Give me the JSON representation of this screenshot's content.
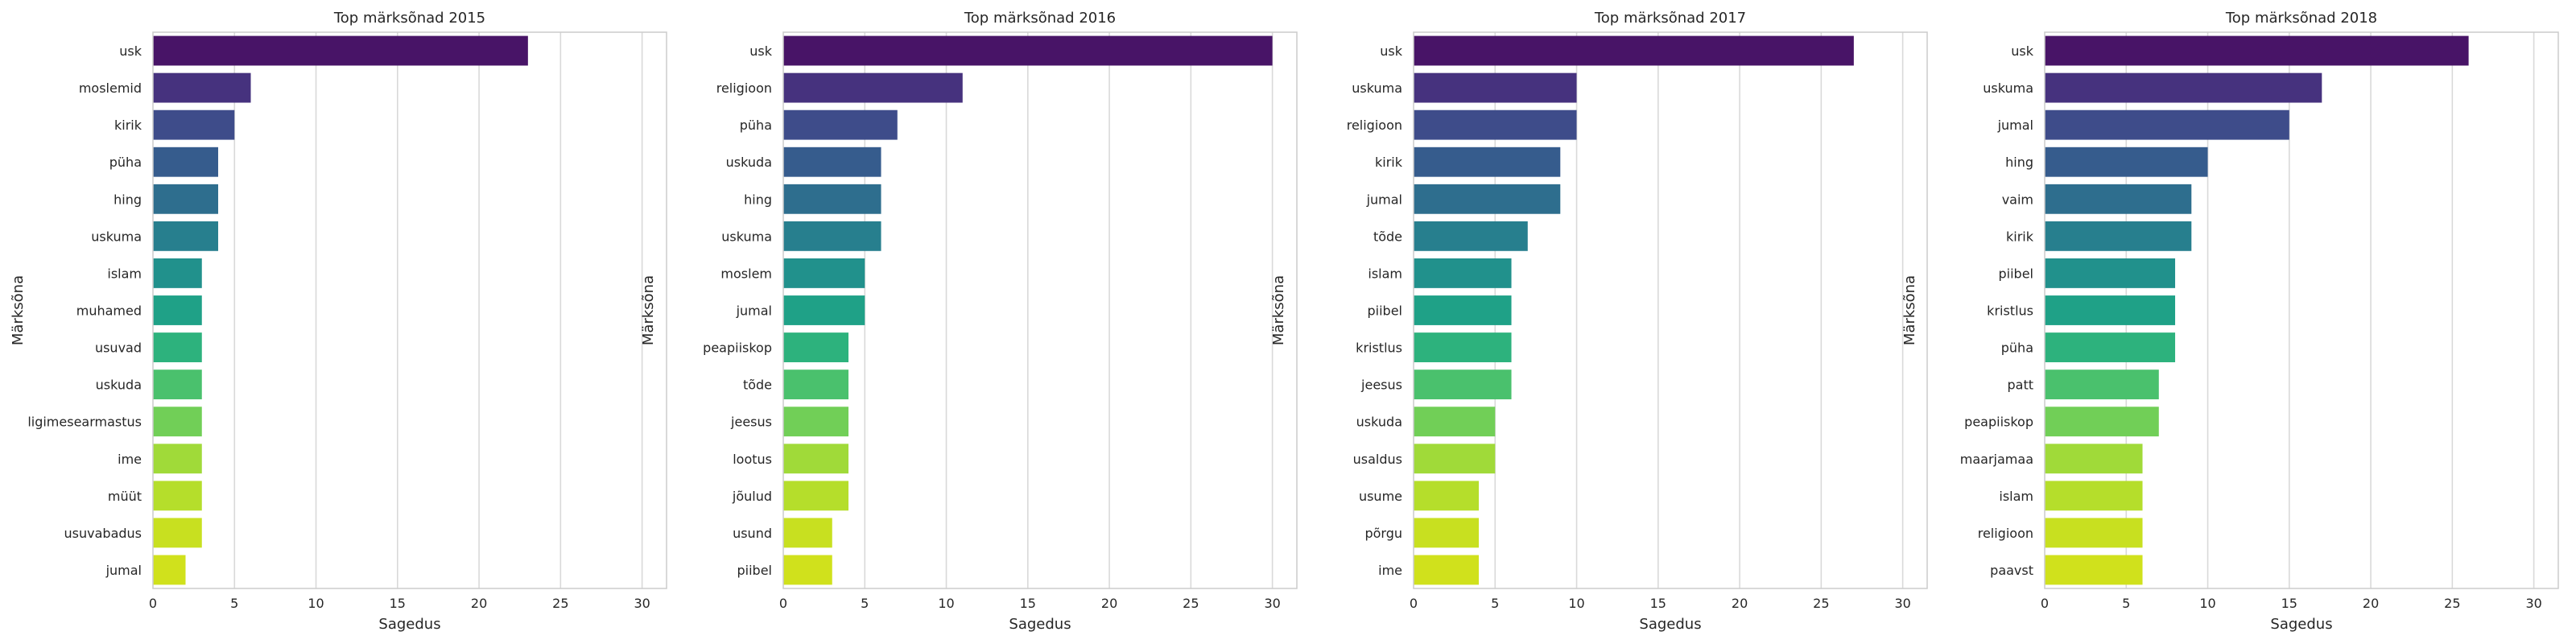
{
  "chart_data": [
    {
      "type": "bar",
      "orientation": "horizontal",
      "title": "Top märksõnad 2015",
      "xlabel": "Sagedus",
      "ylabel": "Märksõna",
      "xlim": [
        0,
        31.5
      ],
      "xticks": [
        0,
        5,
        10,
        15,
        20,
        25,
        30
      ],
      "grid": "vertical",
      "categories": [
        "usk",
        "moslemid",
        "kirik",
        "püha",
        "hing",
        "uskuma",
        "islam",
        "muhamed",
        "usuvad",
        "uskuda",
        "ligimesearmastus",
        "ime",
        "müüt",
        "usuvabadus",
        "jumal"
      ],
      "values": [
        23,
        6,
        5,
        4,
        4,
        4,
        3,
        3,
        3,
        3,
        3,
        3,
        3,
        3,
        2
      ]
    },
    {
      "type": "bar",
      "orientation": "horizontal",
      "title": "Top märksõnad 2016",
      "xlabel": "Sagedus",
      "ylabel": "Märksõna",
      "xlim": [
        0,
        31.5
      ],
      "xticks": [
        0,
        5,
        10,
        15,
        20,
        25,
        30
      ],
      "grid": "vertical",
      "categories": [
        "usk",
        "religioon",
        "püha",
        "uskuda",
        "hing",
        "uskuma",
        "moslem",
        "jumal",
        "peapiiskop",
        "tõde",
        "jeesus",
        "lootus",
        "jõulud",
        "usund",
        "piibel"
      ],
      "values": [
        30,
        11,
        7,
        6,
        6,
        6,
        5,
        5,
        4,
        4,
        4,
        4,
        4,
        3,
        3
      ]
    },
    {
      "type": "bar",
      "orientation": "horizontal",
      "title": "Top märksõnad 2017",
      "xlabel": "Sagedus",
      "ylabel": "Märksõna",
      "xlim": [
        0,
        31.5
      ],
      "xticks": [
        0,
        5,
        10,
        15,
        20,
        25,
        30
      ],
      "grid": "vertical",
      "categories": [
        "usk",
        "uskuma",
        "religioon",
        "kirik",
        "jumal",
        "tõde",
        "islam",
        "piibel",
        "kristlus",
        "jeesus",
        "uskuda",
        "usaldus",
        "usume",
        "põrgu",
        "ime"
      ],
      "values": [
        27,
        10,
        10,
        9,
        9,
        7,
        6,
        6,
        6,
        6,
        5,
        5,
        4,
        4,
        4
      ]
    },
    {
      "type": "bar",
      "orientation": "horizontal",
      "title": "Top märksõnad 2018",
      "xlabel": "Sagedus",
      "ylabel": "Märksõna",
      "xlim": [
        0,
        31.5
      ],
      "xticks": [
        0,
        5,
        10,
        15,
        20,
        25,
        30
      ],
      "grid": "vertical",
      "categories": [
        "usk",
        "uskuma",
        "jumal",
        "hing",
        "vaim",
        "kirik",
        "piibel",
        "kristlus",
        "püha",
        "patt",
        "peapiiskop",
        "maarjamaa",
        "islam",
        "religioon",
        "paavst"
      ],
      "values": [
        26,
        17,
        15,
        10,
        9,
        9,
        8,
        8,
        8,
        7,
        7,
        6,
        6,
        6,
        6
      ]
    }
  ],
  "palette": [
    "#481467",
    "#46327e",
    "#3e4c8a",
    "#365c8d",
    "#2e6e8e",
    "#277f8e",
    "#21918c",
    "#1fa187",
    "#2db27d",
    "#4ac16d",
    "#71cf57",
    "#a0da39",
    "#b5de2b",
    "#c8e020",
    "#d0e11c"
  ]
}
